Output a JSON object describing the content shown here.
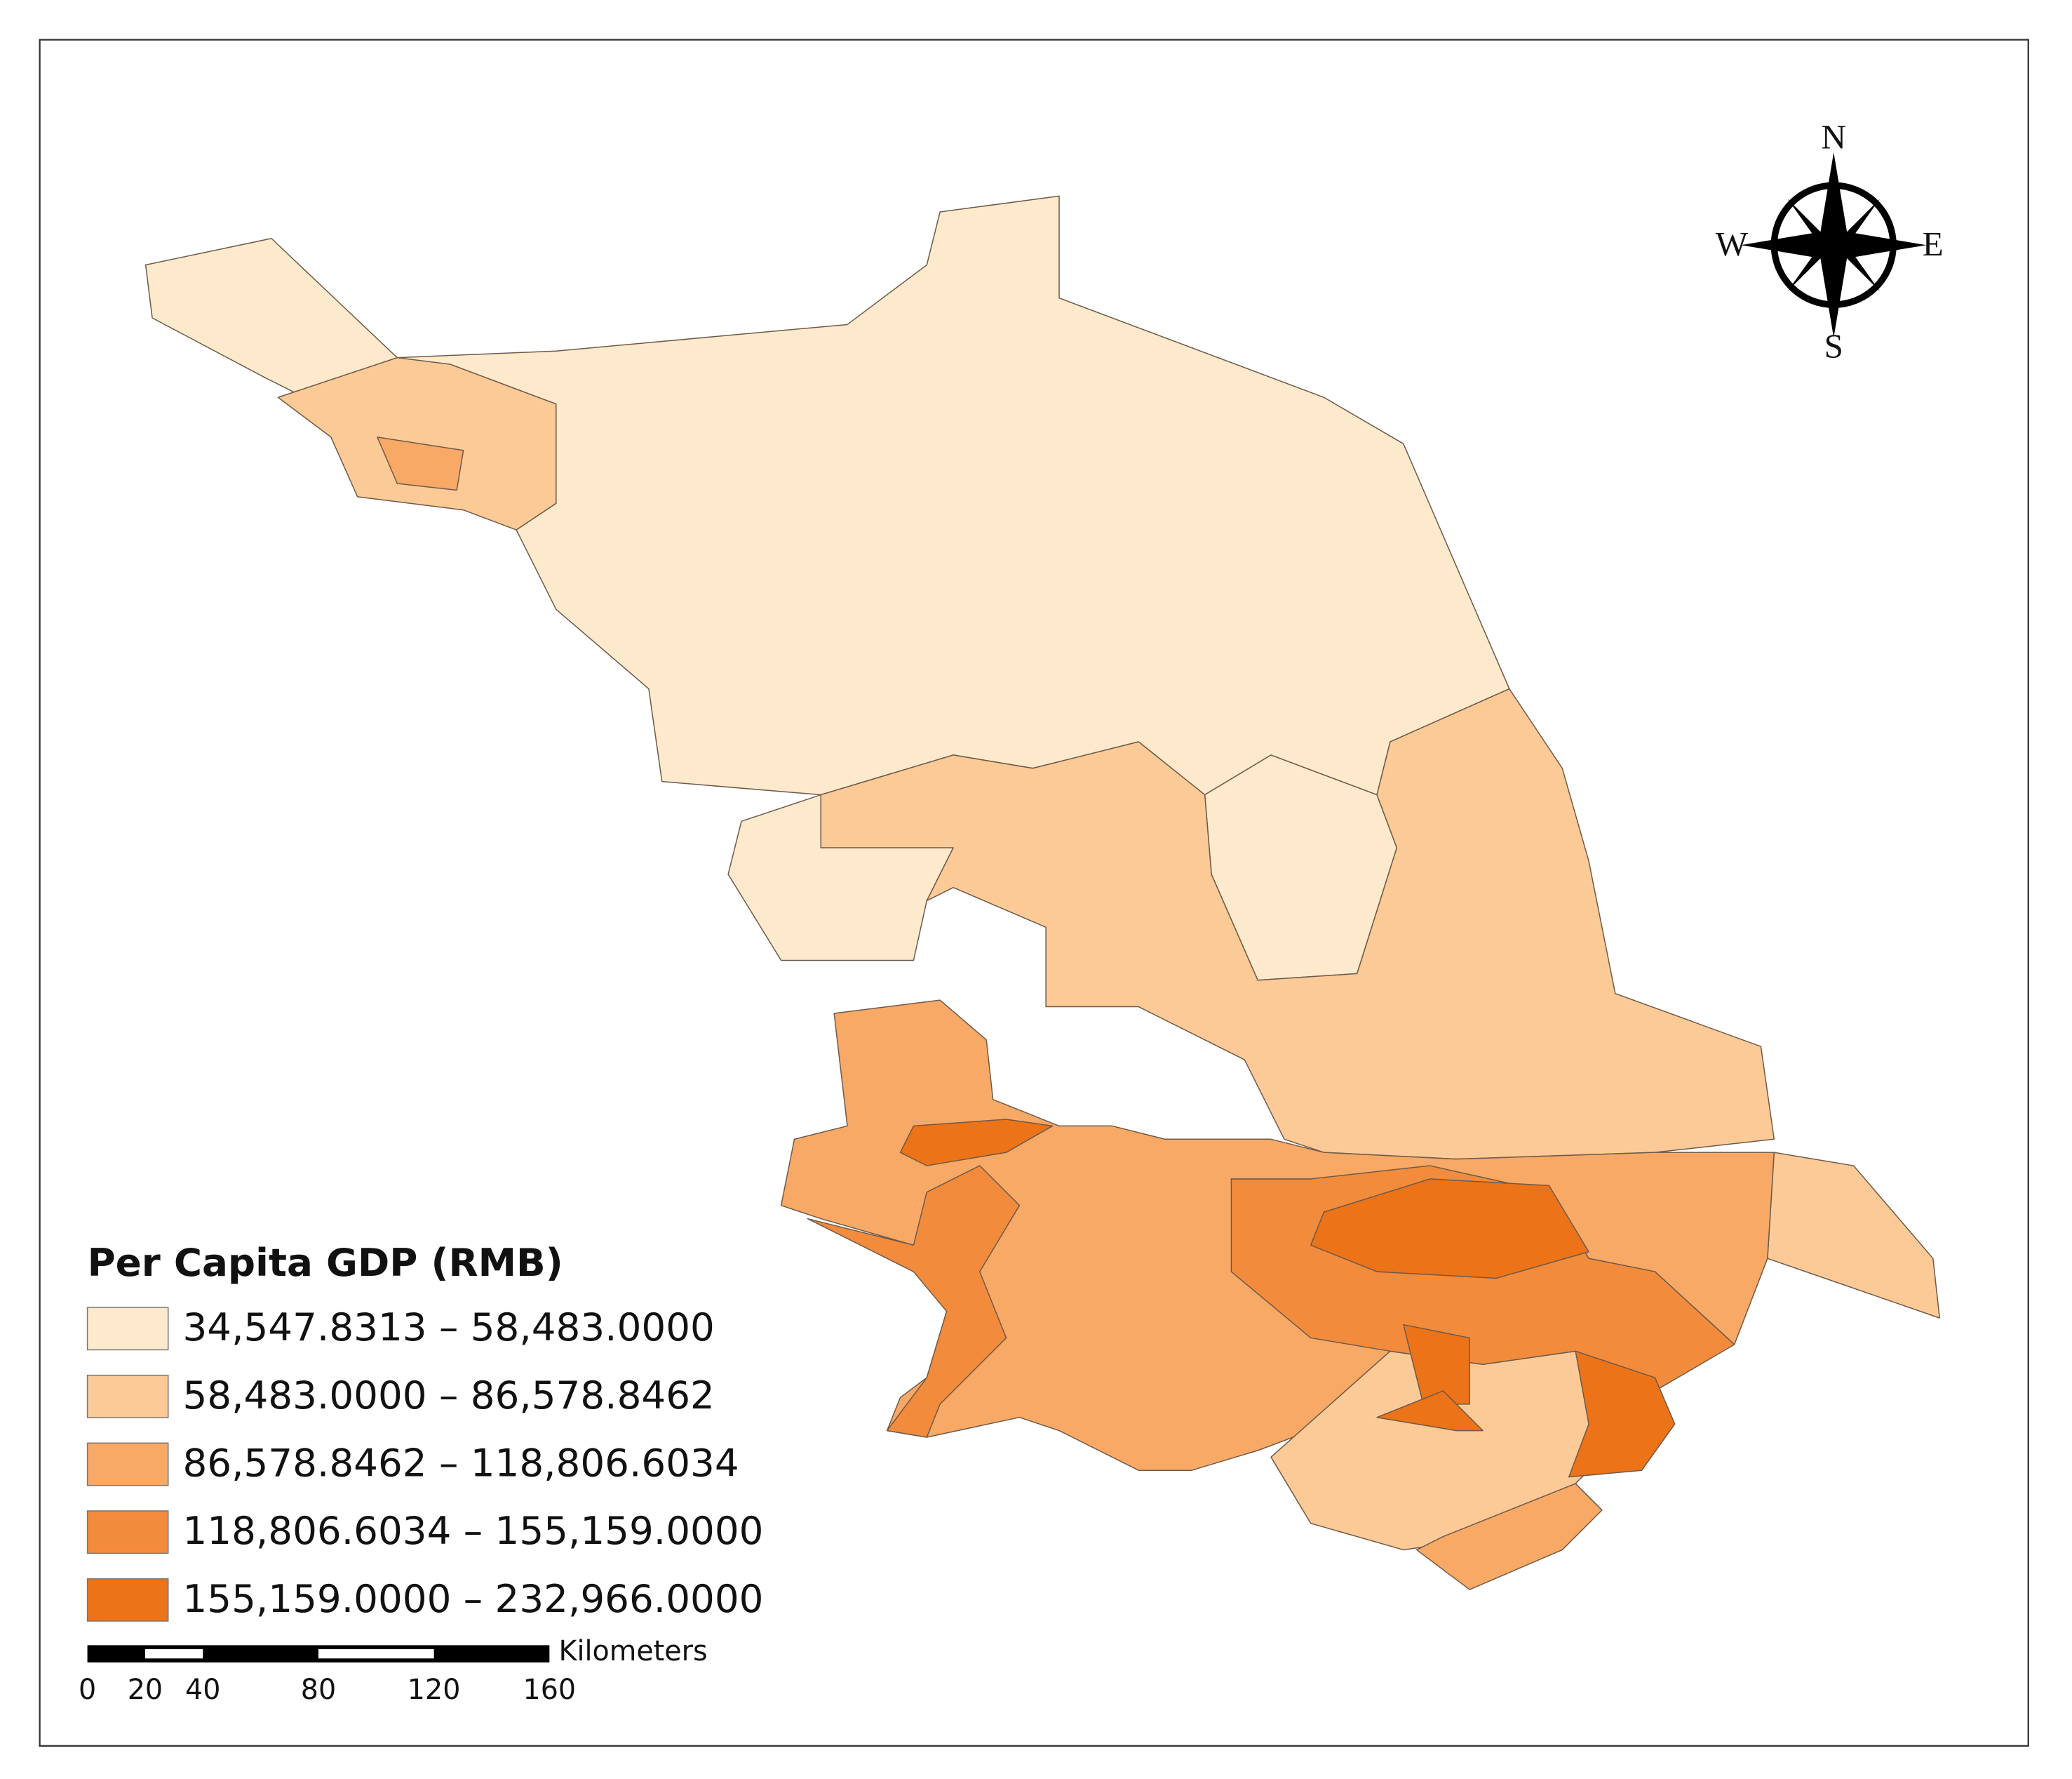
{
  "legend": {
    "title": "Per Capita GDP (RMB)",
    "items": [
      {
        "label": "34,547.8313 – 58,483.0000",
        "color": "#fde9cc"
      },
      {
        "label": "58,483.0000 – 86,578.8462",
        "color": "#fbca96"
      },
      {
        "label": "86,578.8462 – 118,806.6034",
        "color": "#f8a966"
      },
      {
        "label": "118,806.6034 – 155,159.0000",
        "color": "#f28c3c"
      },
      {
        "label": "155,159.0000 – 232,966.0000",
        "color": "#ec7318"
      }
    ]
  },
  "scale_bar": {
    "unit": "Kilometers",
    "ticks": [
      0,
      20,
      40,
      80,
      120,
      160
    ]
  },
  "compass": {
    "north": "N",
    "south": "S",
    "east": "E",
    "west": "W"
  }
}
